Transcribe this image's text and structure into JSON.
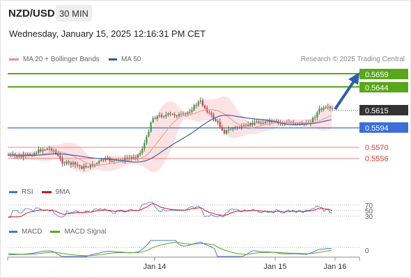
{
  "header": {
    "symbol": "NZD/USD",
    "timeframe": "30 MIN",
    "datetime": "Wednesday, January 15, 2025 12:16:31 PM CET"
  },
  "legend": {
    "ma": "MA 20 + Bollinger Bands",
    "ma50": "MA 50",
    "credit": "Research © 2025 Trading Central"
  },
  "colors": {
    "resistance": "#5aa61a",
    "support": "#f08080",
    "pivot": "#3a6fd8",
    "price": "#333333",
    "arrow": "#2b5ea8",
    "ma20": "#f0a0a0",
    "ma50": "#3a6fd8",
    "band": "#fbdada",
    "up": "#3a9a3a",
    "down": "#d23c3c"
  },
  "levels": [
    {
      "value": "0.5659",
      "type": "resistance"
    },
    {
      "value": "0.5644",
      "type": "resistance"
    },
    {
      "value": "0.5615",
      "type": "price"
    },
    {
      "value": "0.5594",
      "type": "pivot"
    },
    {
      "value": "0.5570",
      "type": "support"
    },
    {
      "value": "0.5556",
      "type": "support"
    }
  ],
  "rsi_panel": {
    "rsi_label": "RSI",
    "ma_label": "9MA",
    "ticks": [
      "70",
      "50",
      "30"
    ]
  },
  "macd_panel": {
    "macd_label": "MACD",
    "signal_label": "MACD Signal",
    "zero_tick": "0"
  },
  "x_axis": {
    "labels": [
      "Jan 14",
      "Jan 15",
      "Jan 16"
    ]
  }
}
